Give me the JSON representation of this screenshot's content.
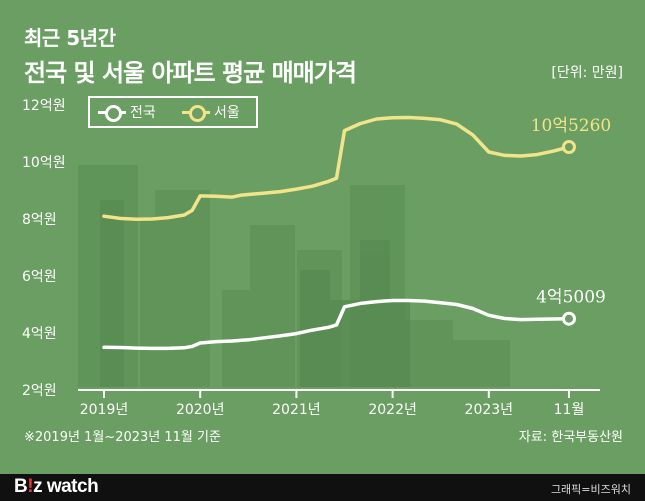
{
  "header": {
    "subtitle": "최근 5년간",
    "title": "전국 및 서울 아파트 평균 매매가격",
    "unit": "[단위: 만원]"
  },
  "footer": {
    "note": "※2019년 1월~2023년 11월 기준",
    "source": "자료: 한국부동산원",
    "brand_prefix": "B",
    "brand_accent": "!",
    "brand_z": "z",
    "brand_suffix": " watch",
    "credit": "그래픽=비즈워치"
  },
  "colors": {
    "background": "#6a9e62",
    "national": "#ffffff",
    "seoul": "#f1e48a",
    "axis": "#ffffff"
  },
  "chart_data": {
    "type": "line",
    "title": "전국 및 서울 아파트 평균 매매가격",
    "ylabel": "만원",
    "ylim": [
      20000,
      120000
    ],
    "yticks": [
      {
        "value": 20000,
        "label": "2억원"
      },
      {
        "value": 40000,
        "label": "4억원"
      },
      {
        "value": 60000,
        "label": "6억원"
      },
      {
        "value": 80000,
        "label": "8억원"
      },
      {
        "value": 100000,
        "label": "10억원"
      },
      {
        "value": 120000,
        "label": "12억원"
      }
    ],
    "xlim": [
      0,
      59
    ],
    "xticks": [
      {
        "value": 0,
        "label": "2019년"
      },
      {
        "value": 12,
        "label": "2020년"
      },
      {
        "value": 24,
        "label": "2021년"
      },
      {
        "value": 36,
        "label": "2022년"
      },
      {
        "value": 48,
        "label": "2023년"
      },
      {
        "value": 58,
        "label": "11월"
      }
    ],
    "series": [
      {
        "name": "전국",
        "color": "#ffffff",
        "end_label": "4억5009",
        "points": [
          [
            0,
            35000
          ],
          [
            2,
            34900
          ],
          [
            4,
            34700
          ],
          [
            6,
            34600
          ],
          [
            8,
            34600
          ],
          [
            10,
            34800
          ],
          [
            11,
            35300
          ],
          [
            12,
            36500
          ],
          [
            14,
            37000
          ],
          [
            16,
            37200
          ],
          [
            18,
            37600
          ],
          [
            20,
            38300
          ],
          [
            22,
            39000
          ],
          [
            24,
            39800
          ],
          [
            26,
            41000
          ],
          [
            28,
            42000
          ],
          [
            29,
            42800
          ],
          [
            30,
            49200
          ],
          [
            32,
            50400
          ],
          [
            34,
            51000
          ],
          [
            36,
            51400
          ],
          [
            38,
            51400
          ],
          [
            40,
            51200
          ],
          [
            42,
            50600
          ],
          [
            44,
            50000
          ],
          [
            46,
            48600
          ],
          [
            48,
            46200
          ],
          [
            50,
            45100
          ],
          [
            52,
            44700
          ],
          [
            54,
            44800
          ],
          [
            56,
            44900
          ],
          [
            58,
            45009
          ]
        ]
      },
      {
        "name": "서울",
        "color": "#f1e48a",
        "end_label": "10억5260",
        "points": [
          [
            0,
            81000
          ],
          [
            2,
            80200
          ],
          [
            4,
            79900
          ],
          [
            6,
            80000
          ],
          [
            8,
            80500
          ],
          [
            10,
            81400
          ],
          [
            11,
            83000
          ],
          [
            12,
            88100
          ],
          [
            14,
            88000
          ],
          [
            16,
            87700
          ],
          [
            17,
            88300
          ],
          [
            18,
            88600
          ],
          [
            20,
            89100
          ],
          [
            22,
            89600
          ],
          [
            24,
            90500
          ],
          [
            26,
            91500
          ],
          [
            28,
            93200
          ],
          [
            29,
            94300
          ],
          [
            30,
            111000
          ],
          [
            32,
            113500
          ],
          [
            34,
            115100
          ],
          [
            36,
            115500
          ],
          [
            38,
            115600
          ],
          [
            40,
            115300
          ],
          [
            42,
            114800
          ],
          [
            44,
            113300
          ],
          [
            46,
            109500
          ],
          [
            48,
            103500
          ],
          [
            50,
            102300
          ],
          [
            52,
            102100
          ],
          [
            54,
            102600
          ],
          [
            56,
            103800
          ],
          [
            58,
            105260
          ]
        ]
      }
    ]
  }
}
